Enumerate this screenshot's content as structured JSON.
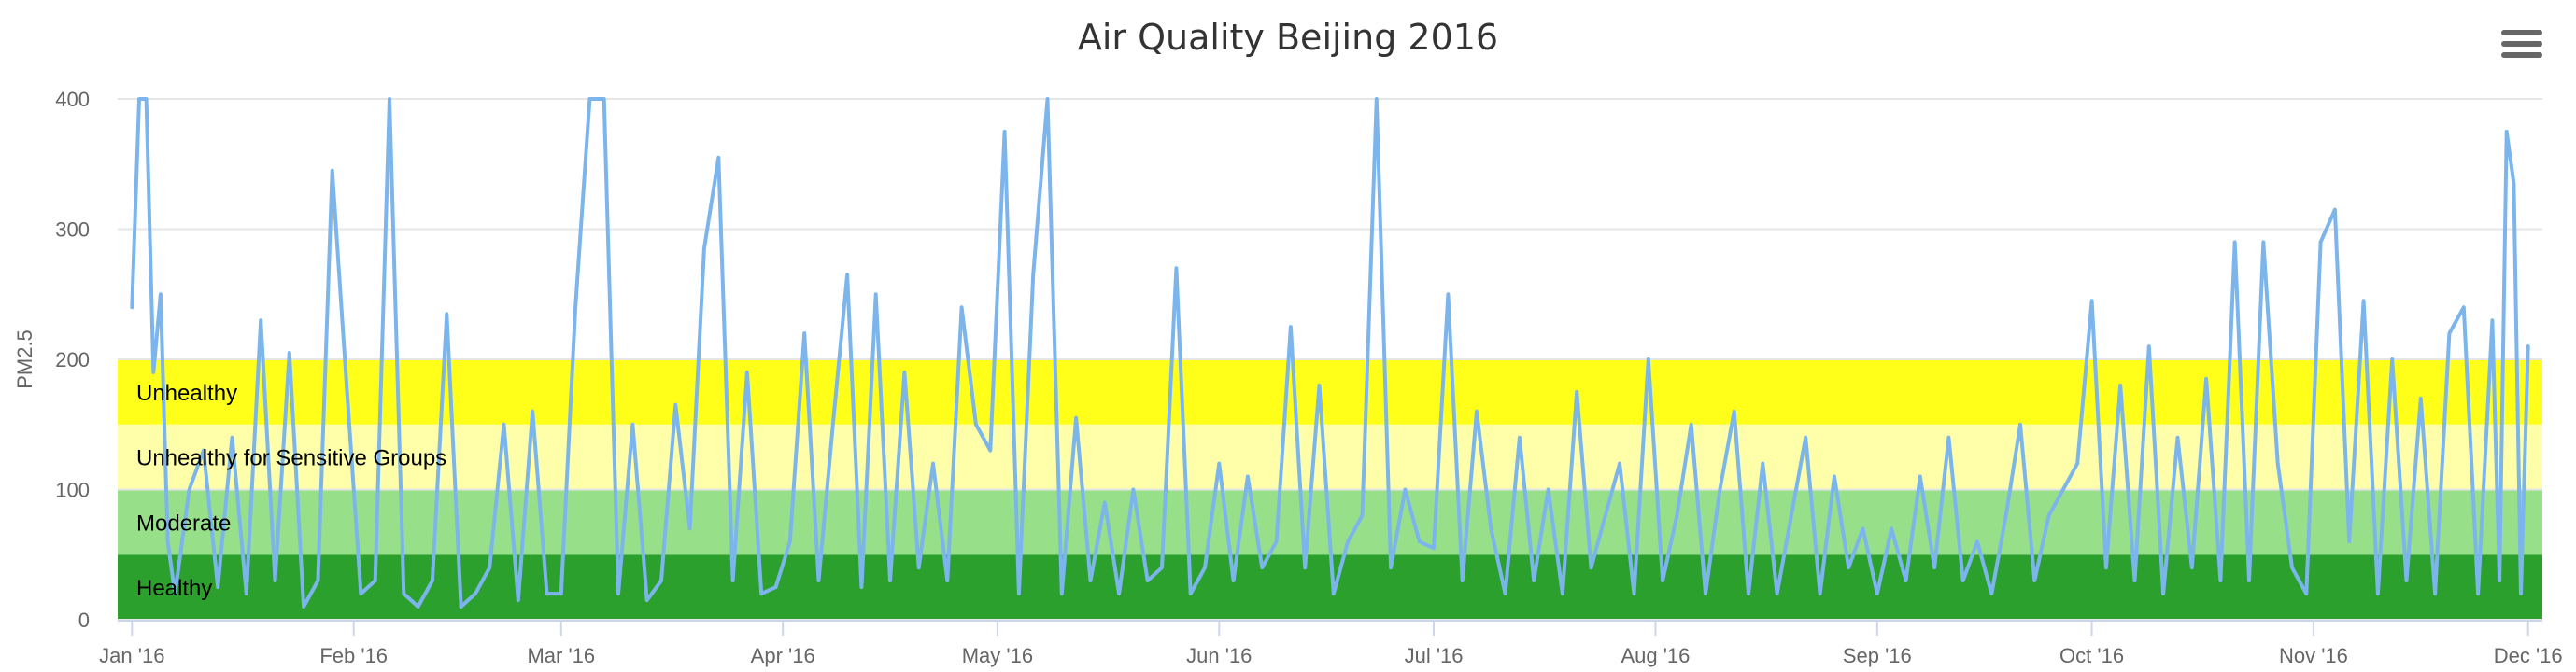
{
  "chart_data": {
    "type": "line",
    "title": "Air Quality Beijing 2016",
    "ylabel": "PM2.5",
    "xlabel": "",
    "ylim": [
      0,
      400
    ],
    "xlim": [
      "2016-01-01",
      "2016-12-01"
    ],
    "yticks": [
      0,
      100,
      200,
      300,
      400
    ],
    "xticks": [
      {
        "date": "2016-01-01",
        "label": "Jan '16"
      },
      {
        "date": "2016-02-01",
        "label": "Feb '16"
      },
      {
        "date": "2016-03-01",
        "label": "Mar '16"
      },
      {
        "date": "2016-04-01",
        "label": "Apr '16"
      },
      {
        "date": "2016-05-01",
        "label": "May '16"
      },
      {
        "date": "2016-06-01",
        "label": "Jun '16"
      },
      {
        "date": "2016-07-01",
        "label": "Jul '16"
      },
      {
        "date": "2016-08-01",
        "label": "Aug '16"
      },
      {
        "date": "2016-09-01",
        "label": "Sep '16"
      },
      {
        "date": "2016-10-01",
        "label": "Oct '16"
      },
      {
        "date": "2016-11-01",
        "label": "Nov '16"
      },
      {
        "date": "2016-12-01",
        "label": "Dec '16"
      }
    ],
    "grid": true,
    "legend": "none",
    "series_color": "#7cb5ec",
    "plot_bands": [
      {
        "from": 0,
        "to": 50,
        "label": "Healthy",
        "color": "#2ca02c"
      },
      {
        "from": 50,
        "to": 100,
        "label": "Moderate",
        "color": "#98df8a"
      },
      {
        "from": 100,
        "to": 150,
        "label": "Unhealthy for Sensitive Groups",
        "color": "#ffffaa"
      },
      {
        "from": 150,
        "to": 200,
        "label": "Unhealthy",
        "color": "#ffff1a"
      }
    ],
    "series": [
      {
        "x": [
          "2016-01-01",
          "2016-01-02",
          "2016-01-03",
          "2016-01-04",
          "2016-01-05",
          "2016-01-06",
          "2016-01-07",
          "2016-01-09",
          "2016-01-11",
          "2016-01-13",
          "2016-01-15",
          "2016-01-17",
          "2016-01-19",
          "2016-01-21",
          "2016-01-23",
          "2016-01-25",
          "2016-01-27",
          "2016-01-29",
          "2016-01-31",
          "2016-02-02",
          "2016-02-04",
          "2016-02-06",
          "2016-02-08",
          "2016-02-10",
          "2016-02-12",
          "2016-02-14",
          "2016-02-16",
          "2016-02-18",
          "2016-02-20",
          "2016-02-22",
          "2016-02-24",
          "2016-02-26",
          "2016-02-28",
          "2016-03-01",
          "2016-03-03",
          "2016-03-05",
          "2016-03-07",
          "2016-03-09",
          "2016-03-11",
          "2016-03-13",
          "2016-03-15",
          "2016-03-17",
          "2016-03-19",
          "2016-03-21",
          "2016-03-23",
          "2016-03-25",
          "2016-03-27",
          "2016-03-29",
          "2016-03-31",
          "2016-04-02",
          "2016-04-04",
          "2016-04-06",
          "2016-04-08",
          "2016-04-10",
          "2016-04-12",
          "2016-04-14",
          "2016-04-16",
          "2016-04-18",
          "2016-04-20",
          "2016-04-22",
          "2016-04-24",
          "2016-04-26",
          "2016-04-28",
          "2016-04-30",
          "2016-05-02",
          "2016-05-04",
          "2016-05-06",
          "2016-05-08",
          "2016-05-10",
          "2016-05-12",
          "2016-05-14",
          "2016-05-16",
          "2016-05-18",
          "2016-05-20",
          "2016-05-22",
          "2016-05-24",
          "2016-05-26",
          "2016-05-28",
          "2016-05-30",
          "2016-06-01",
          "2016-06-03",
          "2016-06-05",
          "2016-06-07",
          "2016-06-09",
          "2016-06-11",
          "2016-06-13",
          "2016-06-15",
          "2016-06-17",
          "2016-06-19",
          "2016-06-21",
          "2016-06-23",
          "2016-06-25",
          "2016-06-27",
          "2016-06-29",
          "2016-07-01",
          "2016-07-03",
          "2016-07-05",
          "2016-07-07",
          "2016-07-09",
          "2016-07-11",
          "2016-07-13",
          "2016-07-15",
          "2016-07-17",
          "2016-07-19",
          "2016-07-21",
          "2016-07-23",
          "2016-07-25",
          "2016-07-27",
          "2016-07-29",
          "2016-07-31",
          "2016-08-02",
          "2016-08-04",
          "2016-08-06",
          "2016-08-08",
          "2016-08-10",
          "2016-08-12",
          "2016-08-14",
          "2016-08-16",
          "2016-08-18",
          "2016-08-20",
          "2016-08-22",
          "2016-08-24",
          "2016-08-26",
          "2016-08-28",
          "2016-08-30",
          "2016-09-01",
          "2016-09-03",
          "2016-09-05",
          "2016-09-07",
          "2016-09-09",
          "2016-09-11",
          "2016-09-13",
          "2016-09-15",
          "2016-09-17",
          "2016-09-19",
          "2016-09-21",
          "2016-09-23",
          "2016-09-25",
          "2016-09-27",
          "2016-09-29",
          "2016-10-01",
          "2016-10-03",
          "2016-10-05",
          "2016-10-07",
          "2016-10-09",
          "2016-10-11",
          "2016-10-13",
          "2016-10-15",
          "2016-10-17",
          "2016-10-19",
          "2016-10-21",
          "2016-10-23",
          "2016-10-25",
          "2016-10-27",
          "2016-10-29",
          "2016-10-31",
          "2016-11-02",
          "2016-11-04",
          "2016-11-06",
          "2016-11-08",
          "2016-11-10",
          "2016-11-12",
          "2016-11-14",
          "2016-11-16",
          "2016-11-18",
          "2016-11-20",
          "2016-11-22",
          "2016-11-24",
          "2016-11-26",
          "2016-11-27",
          "2016-11-28",
          "2016-11-29",
          "2016-11-30",
          "2016-12-01"
        ],
        "values": [
          240,
          400,
          400,
          190,
          250,
          60,
          20,
          100,
          130,
          25,
          140,
          20,
          230,
          30,
          205,
          10,
          30,
          345,
          180,
          20,
          30,
          400,
          20,
          10,
          30,
          235,
          10,
          20,
          40,
          150,
          15,
          160,
          20,
          20,
          240,
          400,
          400,
          20,
          150,
          15,
          30,
          165,
          70,
          285,
          355,
          30,
          190,
          20,
          25,
          60,
          220,
          30,
          150,
          265,
          25,
          250,
          30,
          190,
          40,
          120,
          30,
          240,
          150,
          130,
          375,
          20,
          265,
          400,
          20,
          155,
          30,
          90,
          20,
          100,
          30,
          40,
          270,
          20,
          40,
          120,
          30,
          110,
          40,
          60,
          225,
          40,
          180,
          20,
          60,
          80,
          400,
          40,
          100,
          60,
          55,
          250,
          30,
          160,
          70,
          20,
          140,
          30,
          100,
          20,
          175,
          40,
          80,
          120,
          20,
          200,
          30,
          80,
          150,
          20,
          100,
          160,
          20,
          120,
          20,
          80,
          140,
          20,
          110,
          40,
          70,
          20,
          70,
          30,
          110,
          40,
          140,
          30,
          60,
          20,
          80,
          150,
          30,
          80,
          100,
          120,
          245,
          40,
          180,
          30,
          210,
          20,
          140,
          40,
          185,
          30,
          290,
          30,
          290,
          120,
          40,
          20,
          290,
          315,
          60,
          245,
          20,
          200,
          30,
          170,
          20,
          220,
          240,
          20,
          230,
          30,
          375,
          335,
          20,
          210
        ]
      }
    ]
  }
}
